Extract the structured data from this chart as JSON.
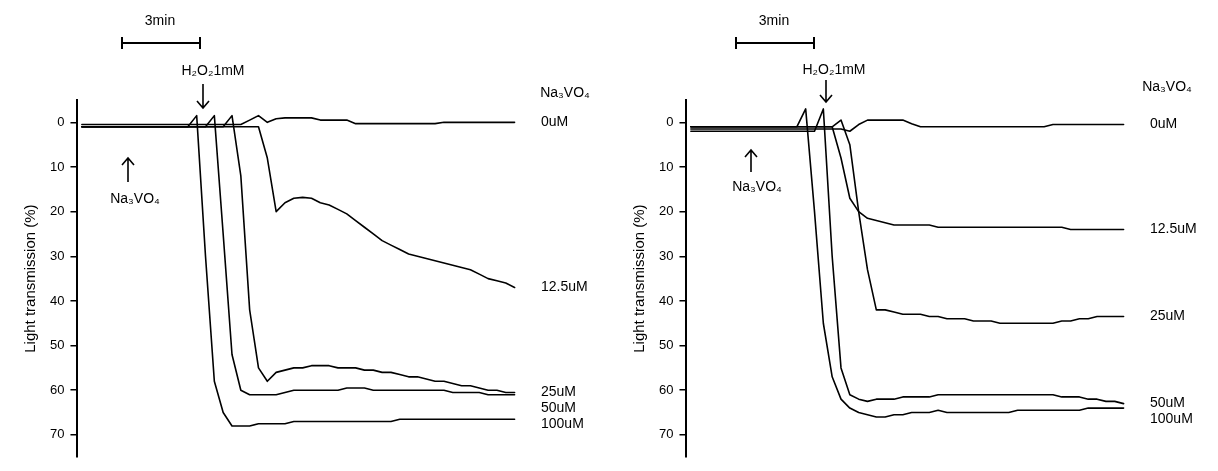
{
  "chart_data": [
    {
      "type": "line",
      "ylabel": "Light transmission (%)",
      "legend_title": "Na₃VO₄",
      "annotations": [
        "3min",
        "H₂O₂1mM",
        "Na₃VO₄"
      ],
      "categories": [
        null,
        null,
        null,
        null,
        null,
        null,
        null,
        null,
        null,
        null,
        null,
        null,
        null,
        null,
        null,
        null,
        null,
        null,
        null,
        null,
        null,
        null,
        null,
        null,
        null,
        null,
        null,
        null,
        null,
        null,
        null,
        null,
        null,
        null,
        null,
        null,
        null,
        null,
        null,
        null,
        null,
        null,
        null,
        null,
        null,
        null,
        null,
        null,
        null,
        null
      ],
      "ylim": [
        75,
        -5
      ],
      "yticks": [
        0,
        10,
        20,
        30,
        40,
        50,
        60,
        70
      ],
      "tick_labels": "y",
      "legend": false,
      "grid": false,
      "marker": "none",
      "line_style": "solid",
      "series": [
        {
          "name": "0uM",
          "color": "#000000",
          "values": [
            0.5,
            0.5,
            0.5,
            0.5,
            0.5,
            0.5,
            0.5,
            0.5,
            0.5,
            0.5,
            0.5,
            0.5,
            0.5,
            0.5,
            0.5,
            0.5,
            0.5,
            0.5,
            0.5,
            -0.5,
            -1.5,
            0,
            -0.8,
            -1,
            -1,
            -1,
            -1,
            -0.5,
            -0.5,
            -0.5,
            -0.5,
            0.3,
            0.3,
            0.3,
            0.3,
            0.3,
            0.3,
            0.3,
            0.3,
            0.3,
            0.3,
            0,
            0,
            0,
            0,
            0,
            0,
            0,
            0,
            0
          ]
        },
        {
          "name": "12.5uM",
          "color": "#000000",
          "values": [
            1,
            1,
            1,
            1,
            1,
            1,
            1,
            1,
            1,
            1,
            1,
            1,
            1,
            1,
            1,
            1,
            1,
            1,
            1,
            1,
            1,
            8,
            20,
            18,
            17,
            16.8,
            17,
            18,
            18.5,
            19.5,
            20.5,
            22,
            23.5,
            25,
            26.5,
            27.5,
            28.5,
            29.5,
            30,
            30.5,
            31,
            31.5,
            32,
            32.5,
            33,
            34,
            35,
            35.5,
            36,
            37
          ]
        },
        {
          "name": "25uM",
          "color": "#000000",
          "values": [
            1,
            1,
            1,
            1,
            1,
            1,
            1,
            1,
            1,
            1,
            1,
            1,
            1,
            1,
            1,
            1,
            1,
            -1.5,
            12,
            42,
            55,
            58,
            56,
            55.5,
            55,
            55,
            54.5,
            54.5,
            54.5,
            55,
            55,
            55,
            55.5,
            55.5,
            56,
            56,
            56.5,
            57,
            57,
            57.5,
            58,
            58,
            58.5,
            59,
            59,
            59.5,
            60,
            60,
            60.5,
            60.5
          ]
        },
        {
          "name": "50uM",
          "color": "#000000",
          "values": [
            1,
            1,
            1,
            1,
            1,
            1,
            1,
            1,
            1,
            1,
            1,
            1,
            1,
            1,
            1,
            -1.5,
            25,
            52,
            60,
            61,
            61,
            61,
            61,
            60.5,
            60,
            60,
            60,
            60,
            60,
            60,
            59.5,
            59.5,
            59.5,
            60,
            60,
            60,
            60,
            60,
            60,
            60,
            60,
            60,
            60.5,
            60.5,
            60.5,
            60.5,
            61,
            61,
            61,
            61
          ]
        },
        {
          "name": "100uM",
          "color": "#000000",
          "values": [
            1,
            1,
            1,
            1,
            1,
            1,
            1,
            1,
            1,
            1,
            1,
            1,
            1,
            -1.5,
            30,
            58,
            65,
            68,
            68,
            68,
            67.5,
            67.5,
            67.5,
            67.5,
            67,
            67,
            67,
            67,
            67,
            67,
            67,
            67,
            67,
            67,
            67,
            67,
            66.5,
            66.5,
            66.5,
            66.5,
            66.5,
            66.5,
            66.5,
            66.5,
            66.5,
            66.5,
            66.5,
            66.5,
            66.5,
            66.5
          ]
        }
      ]
    },
    {
      "type": "line",
      "ylabel": "Light transmission (%)",
      "legend_title": "Na₃VO₄",
      "annotations": [
        "3min",
        "H₂O₂1mM",
        "Na₃VO₄"
      ],
      "categories": [
        null,
        null,
        null,
        null,
        null,
        null,
        null,
        null,
        null,
        null,
        null,
        null,
        null,
        null,
        null,
        null,
        null,
        null,
        null,
        null,
        null,
        null,
        null,
        null,
        null,
        null,
        null,
        null,
        null,
        null,
        null,
        null,
        null,
        null,
        null,
        null,
        null,
        null,
        null,
        null,
        null,
        null,
        null,
        null,
        null,
        null,
        null,
        null,
        null,
        null
      ],
      "ylim": [
        75,
        -5
      ],
      "yticks": [
        0,
        10,
        20,
        30,
        40,
        50,
        60,
        70
      ],
      "tick_labels": "y",
      "legend": false,
      "grid": false,
      "marker": "none",
      "line_style": "solid",
      "series": [
        {
          "name": "0uM",
          "color": "#000000",
          "values": [
            1.5,
            1.5,
            1.5,
            1.5,
            1.5,
            1.5,
            1.5,
            1.5,
            1.5,
            1.5,
            1.5,
            1.5,
            1.5,
            1.5,
            1.5,
            1.5,
            1.5,
            1.5,
            2,
            0.5,
            -0.5,
            -0.5,
            -0.5,
            -0.5,
            -0.5,
            0.3,
            1,
            1,
            1,
            1,
            1,
            1,
            1,
            1,
            1,
            1,
            1,
            1,
            1,
            1,
            1,
            0.5,
            0.5,
            0.5,
            0.5,
            0.5,
            0.5,
            0.5,
            0.5,
            0.5
          ]
        },
        {
          "name": "12.5uM",
          "color": "#000000",
          "values": [
            1,
            1,
            1,
            1,
            1,
            1,
            1,
            1,
            1,
            1,
            1,
            1,
            1,
            1,
            1,
            1,
            1,
            8,
            17,
            20,
            21.5,
            22,
            22.5,
            23,
            23,
            23,
            23,
            23,
            23.5,
            23.5,
            23.5,
            23.5,
            23.5,
            23.5,
            23.5,
            23.5,
            23.5,
            23.5,
            23.5,
            23.5,
            23.5,
            23.5,
            23.5,
            24,
            24,
            24,
            24,
            24,
            24,
            24
          ]
        },
        {
          "name": "25uM",
          "color": "#000000",
          "values": [
            1,
            1,
            1,
            1,
            1,
            1,
            1,
            1,
            1,
            1,
            1,
            1,
            1,
            1,
            1,
            1,
            1,
            -0.5,
            5,
            20,
            33,
            42,
            42,
            42.5,
            43,
            43,
            43,
            43.5,
            43.5,
            44,
            44,
            44,
            44.5,
            44.5,
            44.5,
            45,
            45,
            45,
            45,
            45,
            45,
            45,
            44.5,
            44.5,
            44,
            44,
            43.5,
            43.5,
            43.5,
            43.5
          ]
        },
        {
          "name": "50uM",
          "color": "#000000",
          "values": [
            2,
            2,
            2,
            2,
            2,
            2,
            2,
            2,
            2,
            2,
            2,
            2,
            2,
            2,
            2,
            -3,
            30,
            55,
            61,
            62,
            62.5,
            62,
            62,
            62,
            61.5,
            61.5,
            61.5,
            61.5,
            61,
            61,
            61,
            61,
            61,
            61,
            61,
            61,
            61,
            61,
            61,
            61,
            61,
            61,
            61.5,
            61.5,
            61.5,
            62,
            62,
            62.5,
            62.5,
            63
          ]
        },
        {
          "name": "100uM",
          "color": "#000000",
          "values": [
            1,
            1,
            1,
            1,
            1,
            1,
            1,
            1,
            1,
            1,
            1,
            1,
            1,
            -3,
            20,
            45,
            57,
            62,
            64,
            65,
            65.5,
            66,
            66,
            65.5,
            65.5,
            65,
            65,
            65,
            64.5,
            65,
            65,
            65,
            65,
            65,
            65,
            65,
            65,
            64.5,
            64.5,
            64.5,
            64.5,
            64.5,
            64.5,
            64.5,
            64.5,
            64,
            64,
            64,
            64,
            64
          ]
        }
      ]
    }
  ]
}
